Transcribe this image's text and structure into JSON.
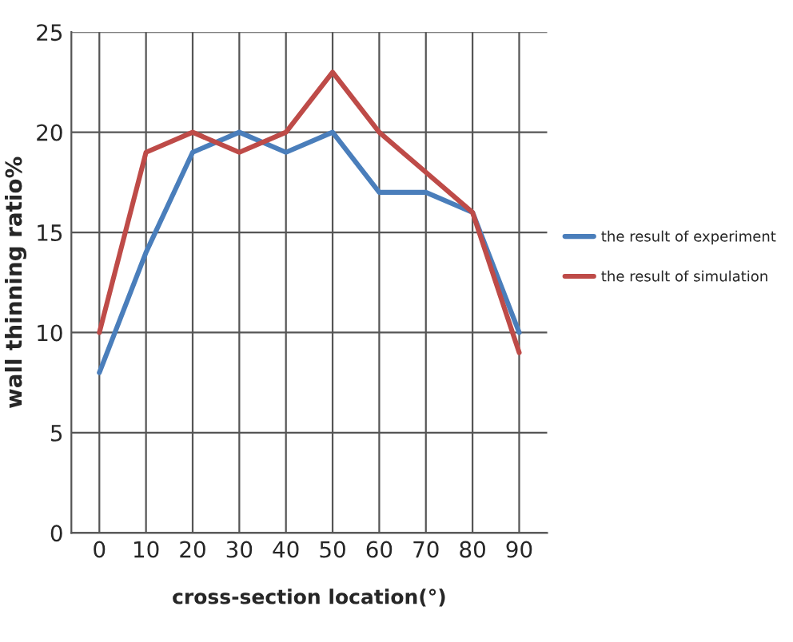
{
  "chart_data": {
    "type": "line",
    "xlabel": "cross-section location(°)",
    "ylabel": "wall thinning ratio%",
    "categories": [
      "0",
      "10",
      "20",
      "30",
      "40",
      "50",
      "60",
      "70",
      "80",
      "90"
    ],
    "series": [
      {
        "name": "the result of experiment",
        "color": "#4a7ebb",
        "values": [
          8,
          14,
          19,
          20,
          19,
          20,
          17,
          17,
          16,
          10
        ]
      },
      {
        "name": "the result of simulation",
        "color": "#be4b48",
        "values": [
          10,
          19,
          20,
          19,
          20,
          23,
          20,
          18,
          16,
          9
        ]
      }
    ],
    "ylim": [
      0,
      25
    ],
    "yticks": [
      0,
      5,
      10,
      15,
      20,
      25
    ],
    "grid": true,
    "legend": "right",
    "marker": "none",
    "line_style": "solid"
  }
}
